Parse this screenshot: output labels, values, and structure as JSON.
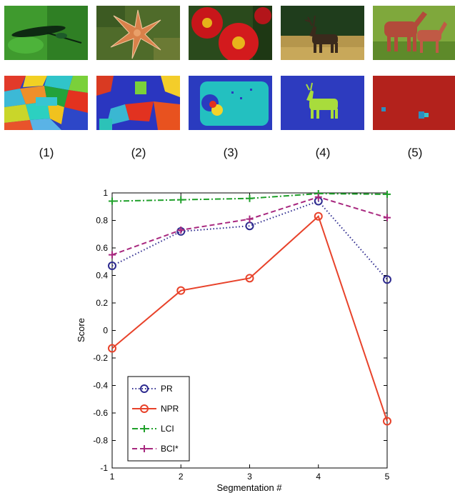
{
  "figure": {
    "images": [
      {
        "label": "(1)",
        "photo_icon": "dragonfly-photo",
        "seg_icon": "dragonfly-segmentation"
      },
      {
        "label": "(2)",
        "photo_icon": "starfish-photo",
        "seg_icon": "starfish-segmentation"
      },
      {
        "label": "(3)",
        "photo_icon": "flowers-photo",
        "seg_icon": "flowers-segmentation"
      },
      {
        "label": "(4)",
        "photo_icon": "elk-photo",
        "seg_icon": "elk-segmentation"
      },
      {
        "label": "(5)",
        "photo_icon": "horses-photo",
        "seg_icon": "horses-segmentation"
      }
    ]
  },
  "chart_data": {
    "type": "line",
    "x": [
      1,
      2,
      3,
      4,
      5
    ],
    "xlabel": "Segmentation #",
    "ylabel": "Score",
    "xlim": [
      1,
      5
    ],
    "ylim": [
      -1,
      1
    ],
    "xticks": [
      "1",
      "2",
      "3",
      "4",
      "5"
    ],
    "yticks": [
      "-1",
      "-0.8",
      "-0.6",
      "-0.4",
      "-0.2",
      "0",
      "0.2",
      "0.4",
      "0.6",
      "0.8",
      "1"
    ],
    "grid": false,
    "legend_position": "bottom-left",
    "series": [
      {
        "name": "PR",
        "values": [
          0.47,
          0.72,
          0.76,
          0.94,
          0.37
        ],
        "color": "#2e2b8f",
        "line": "dotted",
        "marker": "circle"
      },
      {
        "name": "NPR",
        "values": [
          -0.13,
          0.29,
          0.38,
          0.83,
          -0.66
        ],
        "color": "#e8422a",
        "line": "solid",
        "marker": "circle"
      },
      {
        "name": "LCI",
        "values": [
          0.94,
          0.95,
          0.96,
          0.995,
          0.99
        ],
        "color": "#1fa02a",
        "line": "dashdot",
        "marker": "plus"
      },
      {
        "name": "BCI*",
        "values": [
          0.55,
          0.73,
          0.81,
          0.97,
          0.82
        ],
        "color": "#a8287f",
        "line": "dashed",
        "marker": "plus"
      }
    ]
  }
}
